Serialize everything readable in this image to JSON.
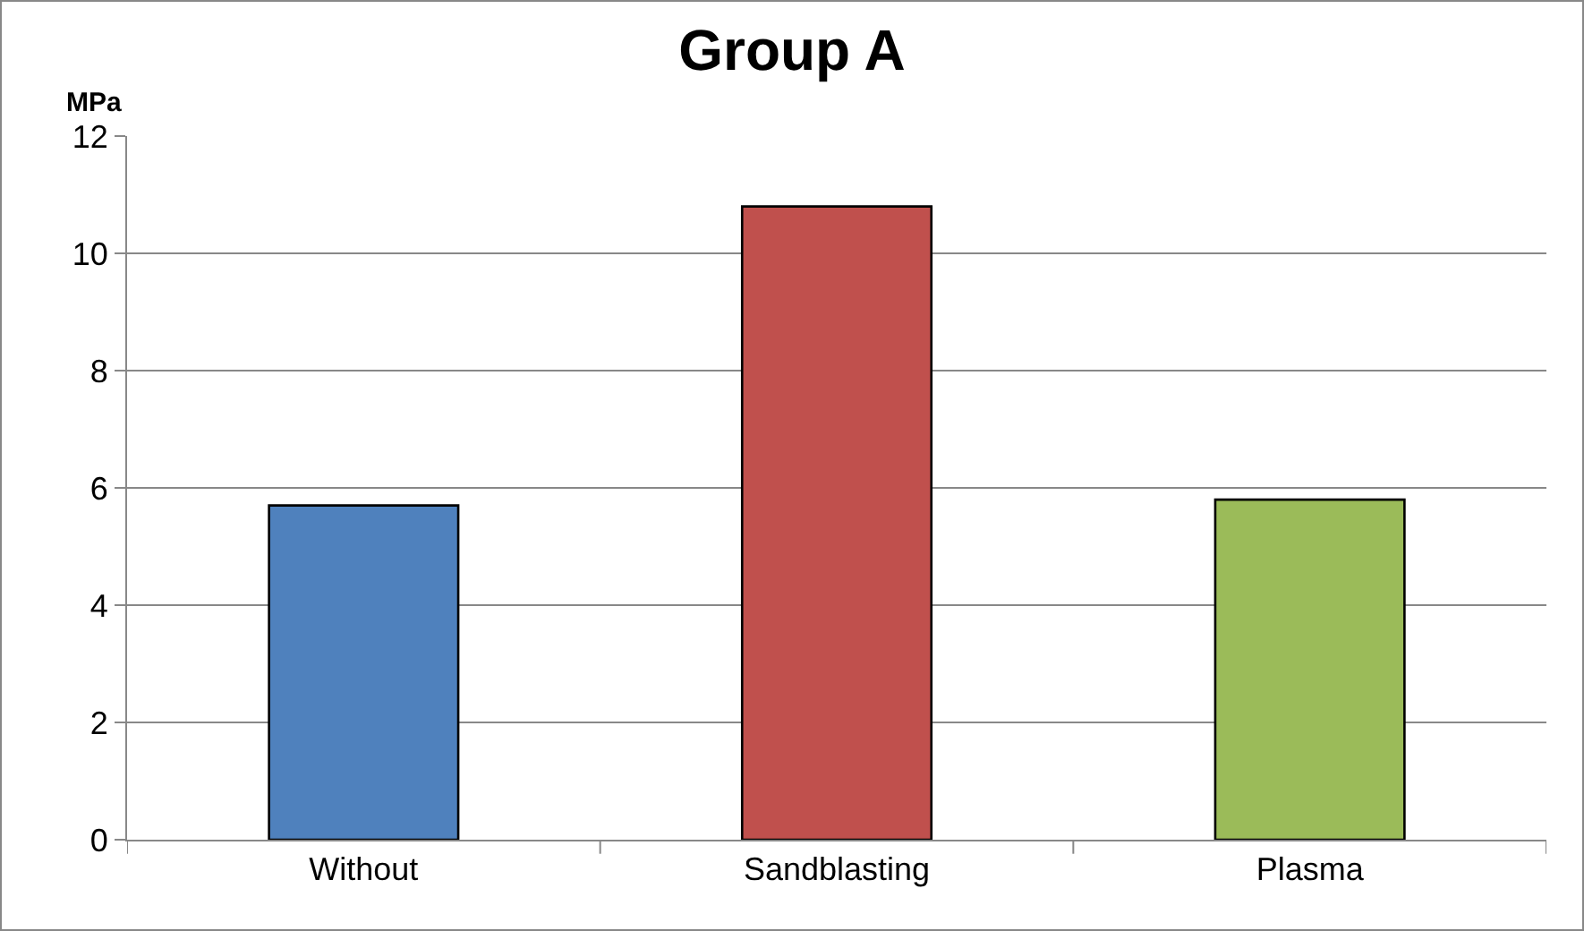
{
  "chart_data": {
    "type": "bar",
    "title": "Group A",
    "ylabel": "MPa",
    "categories": [
      "Without",
      "Sandblasting",
      "Plasma"
    ],
    "values": [
      5.7,
      10.8,
      5.8
    ],
    "colors": [
      "#4f81bd",
      "#c0504d",
      "#9bbb59"
    ],
    "ylim": [
      0,
      12
    ],
    "yticks": [
      0,
      2,
      4,
      6,
      8,
      10,
      12
    ],
    "grid": "y"
  }
}
